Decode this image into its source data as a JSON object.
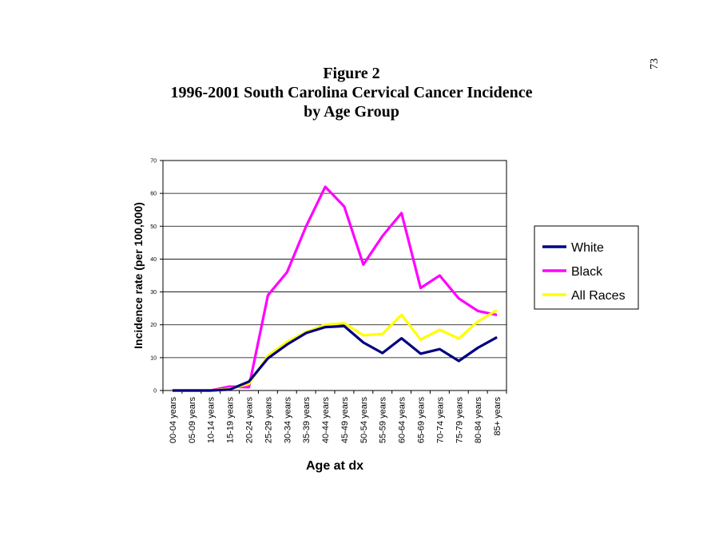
{
  "page_number": "73",
  "title_lines": [
    "Figure 2",
    "1996-2001 South Carolina Cervical Cancer Incidence",
    "by Age Group"
  ],
  "chart_data": {
    "type": "line",
    "title": "Figure 2 1996-2001 South Carolina Cervical Cancer Incidence by Age Group",
    "xlabel": "Age at dx",
    "ylabel": "Incidence rate (per 100,000)",
    "ylim": [
      0,
      70
    ],
    "yticks": [
      "0",
      "10",
      "20",
      "30",
      "40",
      "50",
      "60",
      "70"
    ],
    "grid": true,
    "legend_position": "right",
    "categories": [
      "00-04 years",
      "05-09 years",
      "10-14 years",
      "15-19 years",
      "20-24 years",
      "25-29 years",
      "30-34 years",
      "35-39 years",
      "40-44 years",
      "45-49 years",
      "50-54 years",
      "55-59 years",
      "60-64 years",
      "65-69 years",
      "70-74 years",
      "75-79 years",
      "80-84 years",
      "85+ years"
    ],
    "series": [
      {
        "name": "White",
        "color": "#000080",
        "values": [
          0,
          0,
          0,
          0.3,
          2.7,
          9.8,
          14,
          17.5,
          19.3,
          19.6,
          14.6,
          11.4,
          15.9,
          11.2,
          12.6,
          9,
          13,
          16.2
        ]
      },
      {
        "name": "Black",
        "color": "#FF00FF",
        "values": [
          0,
          0,
          0,
          1.2,
          1,
          29,
          36,
          50,
          62,
          56,
          38.3,
          47,
          54,
          31.2,
          35,
          28,
          24.2,
          23
        ]
      },
      {
        "name": "All Races",
        "color": "#FFFF00",
        "values": [
          0,
          0,
          0,
          0.5,
          2,
          10.6,
          14.8,
          17.8,
          20,
          20.5,
          16.8,
          17.2,
          23,
          15.5,
          18.5,
          15.8,
          21,
          24.5
        ]
      }
    ]
  }
}
